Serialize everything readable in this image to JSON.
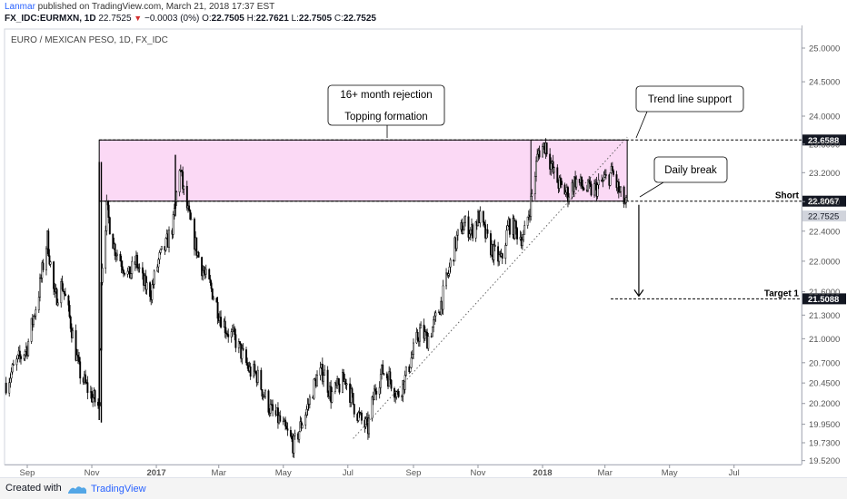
{
  "header": {
    "author": "Lanmar",
    "published_text": " published on TradingView.com, March 21, 2018 17:37 EST",
    "symbol": "FX_IDC:EURMXN, 1D",
    "last": "22.7525",
    "change": "−0.0003 (0%)",
    "o_label": "O:",
    "o": "22.7505",
    "h_label": "H:",
    "h": "22.7621",
    "l_label": "L:",
    "l": "22.7505",
    "c_label": "C:",
    "c": "22.7525"
  },
  "footer": {
    "created_with": "Created with",
    "brand": "TradingView"
  },
  "colors": {
    "candle": "#000000",
    "zone_fill": "#fbd9f5",
    "accent": "#2962ff",
    "down": "#d32f2f"
  },
  "chart_data": {
    "type": "candlestick",
    "title": "EURO / MEXICAN PESO, 1D, FX_IDC",
    "y_axis": {
      "ticks": [
        "25.0000",
        "24.5000",
        "24.0000",
        "23.6000",
        "23.2000",
        "22.8000",
        "22.4000",
        "22.0000",
        "21.6000",
        "21.3000",
        "21.0000",
        "20.7000",
        "20.4500",
        "20.2000",
        "19.9500",
        "19.7300",
        "19.5200"
      ],
      "ylim": [
        19.52,
        25.0
      ],
      "scale": "log"
    },
    "x_axis": {
      "ticks": [
        {
          "label": "Sep",
          "date": "2016-09-01",
          "bold": false
        },
        {
          "label": "Nov",
          "date": "2016-11-01",
          "bold": false
        },
        {
          "label": "2017",
          "date": "2017-01-01",
          "bold": true
        },
        {
          "label": "Mar",
          "date": "2017-03-01",
          "bold": false
        },
        {
          "label": "May",
          "date": "2017-05-01",
          "bold": false
        },
        {
          "label": "Jul",
          "date": "2017-07-01",
          "bold": false
        },
        {
          "label": "Sep",
          "date": "2017-09-01",
          "bold": false
        },
        {
          "label": "Nov",
          "date": "2017-11-01",
          "bold": false
        },
        {
          "label": "2018",
          "date": "2018-01-01",
          "bold": true
        },
        {
          "label": "Mar",
          "date": "2018-03-01",
          "bold": false
        },
        {
          "label": "May",
          "date": "2018-05-01",
          "bold": false
        },
        {
          "label": "Jul",
          "date": "2018-07-01",
          "bold": false
        }
      ]
    },
    "series": [
      {
        "points": [
          [
            "2016-08-12",
            20.45
          ],
          [
            "2016-08-22",
            20.7
          ],
          [
            "2016-09-01",
            20.9
          ],
          [
            "2016-09-12",
            21.6
          ],
          [
            "2016-09-20",
            22.3
          ],
          [
            "2016-09-27",
            21.5
          ],
          [
            "2016-10-04",
            21.7
          ],
          [
            "2016-10-12",
            21.2
          ],
          [
            "2016-10-20",
            20.6
          ],
          [
            "2016-10-27",
            20.4
          ],
          [
            "2016-11-03",
            20.25
          ],
          [
            "2016-11-08",
            20.15
          ],
          [
            "2016-11-10",
            21.8
          ],
          [
            "2016-11-15",
            22.7
          ],
          [
            "2016-11-22",
            22.2
          ],
          [
            "2016-11-29",
            22.0
          ],
          [
            "2016-12-06",
            21.8
          ],
          [
            "2016-12-13",
            22.0
          ],
          [
            "2016-12-20",
            21.7
          ],
          [
            "2016-12-27",
            21.6
          ],
          [
            "2017-01-03",
            22.0
          ],
          [
            "2017-01-10",
            22.2
          ],
          [
            "2017-01-17",
            22.5
          ],
          [
            "2017-01-23",
            23.3
          ],
          [
            "2017-01-26",
            23.0
          ],
          [
            "2017-02-02",
            22.5
          ],
          [
            "2017-02-09",
            22.1
          ],
          [
            "2017-02-16",
            21.8
          ],
          [
            "2017-02-23",
            21.6
          ],
          [
            "2017-03-02",
            21.3
          ],
          [
            "2017-03-09",
            21.1
          ],
          [
            "2017-03-16",
            21.0
          ],
          [
            "2017-03-23",
            20.8
          ],
          [
            "2017-03-30",
            20.6
          ],
          [
            "2017-04-06",
            20.55
          ],
          [
            "2017-04-13",
            20.3
          ],
          [
            "2017-04-20",
            20.1
          ],
          [
            "2017-04-27",
            20.0
          ],
          [
            "2017-05-04",
            19.85
          ],
          [
            "2017-05-11",
            19.7
          ],
          [
            "2017-05-18",
            19.95
          ],
          [
            "2017-05-25",
            20.2
          ],
          [
            "2017-06-01",
            20.5
          ],
          [
            "2017-06-08",
            20.6
          ],
          [
            "2017-06-15",
            20.3
          ],
          [
            "2017-06-22",
            20.4
          ],
          [
            "2017-06-29",
            20.5
          ],
          [
            "2017-07-06",
            20.2
          ],
          [
            "2017-07-13",
            20.0
          ],
          [
            "2017-07-20",
            19.9
          ],
          [
            "2017-07-27",
            20.4
          ],
          [
            "2017-08-03",
            20.6
          ],
          [
            "2017-08-10",
            20.5
          ],
          [
            "2017-08-17",
            20.3
          ],
          [
            "2017-08-24",
            20.5
          ],
          [
            "2017-08-31",
            20.8
          ],
          [
            "2017-09-07",
            21.1
          ],
          [
            "2017-09-14",
            21.0
          ],
          [
            "2017-09-21",
            21.2
          ],
          [
            "2017-09-28",
            21.5
          ],
          [
            "2017-10-05",
            21.9
          ],
          [
            "2017-10-12",
            22.3
          ],
          [
            "2017-10-19",
            22.5
          ],
          [
            "2017-10-26",
            22.4
          ],
          [
            "2017-11-02",
            22.6
          ],
          [
            "2017-11-09",
            22.3
          ],
          [
            "2017-11-16",
            22.1
          ],
          [
            "2017-11-23",
            22.0
          ],
          [
            "2017-11-30",
            22.5
          ],
          [
            "2017-12-07",
            22.4
          ],
          [
            "2017-12-14",
            22.3
          ],
          [
            "2017-12-21",
            22.8
          ],
          [
            "2017-12-28",
            23.5
          ],
          [
            "2018-01-04",
            23.6
          ],
          [
            "2018-01-11",
            23.2
          ],
          [
            "2018-01-18",
            23.0
          ],
          [
            "2018-01-25",
            22.9
          ],
          [
            "2018-02-01",
            23.1
          ],
          [
            "2018-02-08",
            23.0
          ],
          [
            "2018-02-15",
            22.95
          ],
          [
            "2018-02-22",
            23.0
          ],
          [
            "2018-03-01",
            23.1
          ],
          [
            "2018-03-08",
            23.2
          ],
          [
            "2018-03-15",
            22.9
          ],
          [
            "2018-03-21",
            22.75
          ]
        ]
      }
    ],
    "levels": [
      {
        "label": "Short",
        "value": 22.8067,
        "text": "22.8067"
      },
      {
        "label": "",
        "value": 23.6588,
        "text": "23.6588"
      },
      {
        "label": "Target 1",
        "value": 21.5088,
        "text": "21.5088"
      }
    ],
    "last_price": {
      "value": 22.7525,
      "text": "22.7525"
    },
    "zone": {
      "from_date": "2016-11-08",
      "to_date": "2018-03-22",
      "low": 22.8067,
      "high": 23.6588
    },
    "annotations": [
      {
        "name": "rejection-callout",
        "lines": [
          "16+ month rejection",
          "Topping formation"
        ]
      },
      {
        "name": "trendline-callout",
        "lines": [
          "Trend line support"
        ]
      },
      {
        "name": "daily-break-callout",
        "lines": [
          "Daily break"
        ]
      }
    ],
    "trend_line": {
      "start": [
        "2017-07-06",
        19.78
      ],
      "end": [
        "2018-03-22",
        23.7
      ]
    },
    "grid": false
  }
}
